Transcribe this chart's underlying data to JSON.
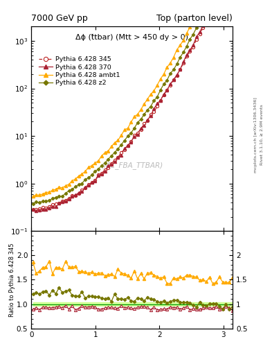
{
  "title_left": "7000 GeV pp",
  "title_right": "Top (parton level)",
  "annotation": "Δϕ (t̄tbar) (Mtt > 450 dy > 0)",
  "watermark": "(MC_FBA_TTBAR)",
  "right_label1": "Rivet 3.1.10, ≥ 2.9M events",
  "right_label2": "mcplots.cern.ch [arXiv:1306.3436]",
  "ylabel_ratio": "Ratio to Pythia 6.428 345",
  "legend_entries": [
    "Pythia 6.428 345",
    "Pythia 6.428 370",
    "Pythia 6.428 ambt1",
    "Pythia 6.428 z2"
  ],
  "color_345": "#bb2222",
  "color_370": "#aa2233",
  "color_ambt1": "#ffaa00",
  "color_z2": "#777700",
  "ratio_band_color": "#ccff88",
  "ratio_line_color": "#009900",
  "xlim": [
    0,
    3.14159
  ],
  "ylim_main_log": [
    0.1,
    2000
  ],
  "ylim_ratio": [
    0.5,
    2.5
  ],
  "yticks_ratio": [
    0.5,
    1.0,
    1.5,
    2.0
  ],
  "xticks": [
    0,
    1,
    2,
    3
  ]
}
